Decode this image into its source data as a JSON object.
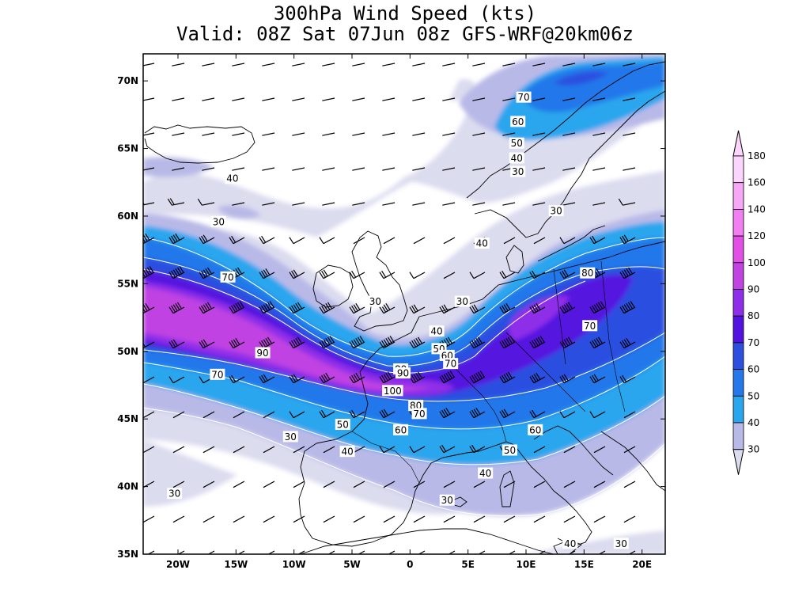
{
  "title_line1": "300hPa Wind Speed (kts)",
  "title_line2": "Valid: 08Z Sat 07Jun 08z GFS-WRF@20km06z",
  "lat_ticks": [
    "70N",
    "65N",
    "60N",
    "55N",
    "50N",
    "45N",
    "40N",
    "35N"
  ],
  "lon_ticks": [
    "20W",
    "15W",
    "10W",
    "5W",
    "0",
    "5E",
    "10E",
    "15E",
    "20E"
  ],
  "lat_range": [
    35,
    72
  ],
  "lon_range": [
    -23,
    22
  ],
  "colorbar": {
    "levels": [
      "30",
      "40",
      "50",
      "60",
      "70",
      "80",
      "90",
      "100",
      "120",
      "140",
      "160",
      "180"
    ],
    "colors": [
      "#dcdcef",
      "#b9b9e8",
      "#2aa6ee",
      "#2478ea",
      "#2c4fe0",
      "#5412e0",
      "#8f2ee8",
      "#c043e2",
      "#e24fe6",
      "#f27ef2",
      "#f6a7f6",
      "#fbd5fb"
    ]
  },
  "contour_labels": [
    {
      "text": "70",
      "lon": 9.8,
      "lat": 68.8,
      "bg": "light"
    },
    {
      "text": "60",
      "lon": 9.3,
      "lat": 67.0,
      "bg": "light"
    },
    {
      "text": "50",
      "lon": 9.2,
      "lat": 65.4,
      "bg": "light"
    },
    {
      "text": "40",
      "lon": 9.2,
      "lat": 64.3,
      "bg": "light"
    },
    {
      "text": "30",
      "lon": 9.3,
      "lat": 63.3,
      "bg": "light"
    },
    {
      "text": "40",
      "lon": -15.3,
      "lat": 62.8,
      "bg": "light"
    },
    {
      "text": "30",
      "lon": -16.5,
      "lat": 59.6,
      "bg": "light"
    },
    {
      "text": "30",
      "lon": 12.6,
      "lat": 60.4,
      "bg": "light"
    },
    {
      "text": "40",
      "lon": 6.2,
      "lat": 58.0,
      "bg": "light"
    },
    {
      "text": "70",
      "lon": -15.7,
      "lat": 55.5,
      "bg": "light"
    },
    {
      "text": "80",
      "lon": 15.3,
      "lat": 55.8,
      "bg": "light"
    },
    {
      "text": "30",
      "lon": -3.0,
      "lat": 53.7,
      "bg": "light"
    },
    {
      "text": "30",
      "lon": 4.5,
      "lat": 53.7,
      "bg": "light"
    },
    {
      "text": "40",
      "lon": 2.3,
      "lat": 51.5,
      "bg": "light"
    },
    {
      "text": "70",
      "lon": 15.5,
      "lat": 51.9,
      "bg": "light"
    },
    {
      "text": "50",
      "lon": 2.5,
      "lat": 50.2,
      "bg": "light"
    },
    {
      "text": "60",
      "lon": 3.2,
      "lat": 49.7,
      "bg": "light"
    },
    {
      "text": "70",
      "lon": 3.5,
      "lat": 49.1,
      "bg": "light"
    },
    {
      "text": "90",
      "lon": -12.7,
      "lat": 49.9,
      "bg": "light"
    },
    {
      "text": "80",
      "lon": -0.8,
      "lat": 48.7,
      "bg": "light"
    },
    {
      "text": "90",
      "lon": -0.6,
      "lat": 48.4,
      "bg": "light"
    },
    {
      "text": "70",
      "lon": -16.6,
      "lat": 48.3,
      "bg": "light"
    },
    {
      "text": "100",
      "lon": -1.5,
      "lat": 47.1,
      "bg": "light"
    },
    {
      "text": "80",
      "lon": 0.5,
      "lat": 46.0,
      "bg": "light"
    },
    {
      "text": "70",
      "lon": 0.8,
      "lat": 45.4,
      "bg": "light"
    },
    {
      "text": "50",
      "lon": -5.8,
      "lat": 44.6,
      "bg": "light"
    },
    {
      "text": "60",
      "lon": -0.8,
      "lat": 44.2,
      "bg": "light"
    },
    {
      "text": "60",
      "lon": 10.8,
      "lat": 44.2,
      "bg": "light"
    },
    {
      "text": "30",
      "lon": -10.3,
      "lat": 43.7,
      "bg": "light"
    },
    {
      "text": "40",
      "lon": -5.4,
      "lat": 42.6,
      "bg": "light"
    },
    {
      "text": "50",
      "lon": 8.6,
      "lat": 42.7,
      "bg": "light"
    },
    {
      "text": "40",
      "lon": 6.5,
      "lat": 41.0,
      "bg": "light"
    },
    {
      "text": "30",
      "lon": -20.3,
      "lat": 39.5,
      "bg": "light"
    },
    {
      "text": "30",
      "lon": 3.2,
      "lat": 39.0,
      "bg": "light"
    },
    {
      "text": "40",
      "lon": 13.8,
      "lat": 35.8,
      "bg": "light"
    },
    {
      "text": "30",
      "lon": 18.2,
      "lat": 35.8,
      "bg": "light"
    }
  ]
}
